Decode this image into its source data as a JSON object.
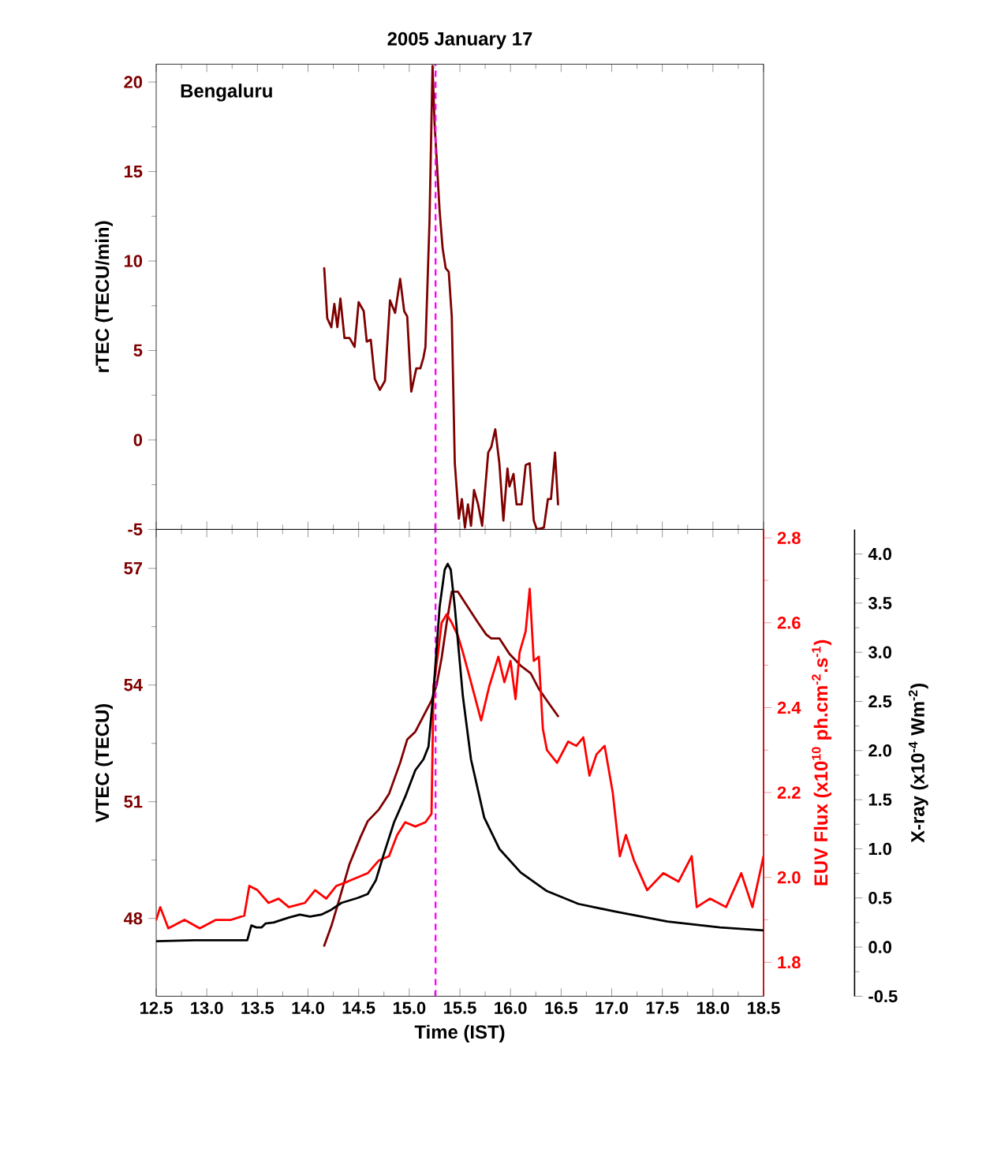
{
  "chart_data": [
    {
      "type": "line",
      "title": "2005 January 17",
      "ylabel": "rTEC (TECU/min)",
      "annotations": [
        "Bengaluru"
      ],
      "series": [
        {
          "color": "#7f0000",
          "x": [
            14.16,
            14.19,
            14.23,
            14.26,
            14.29,
            14.32,
            14.36,
            14.41,
            14.46,
            14.5,
            14.55,
            14.58,
            14.62,
            14.66,
            14.71,
            14.76,
            14.81,
            14.86,
            14.91,
            14.95,
            14.98,
            15.02,
            15.07,
            15.11,
            15.14,
            15.16,
            15.2,
            15.23,
            15.25,
            15.28,
            15.3,
            15.33,
            15.36,
            15.39,
            15.42,
            15.45,
            15.49,
            15.52,
            15.55,
            15.58,
            15.61,
            15.64,
            15.68,
            15.72,
            15.78,
            15.81,
            15.85,
            15.89,
            15.93,
            15.97,
            15.99,
            16.03,
            16.06,
            16.11,
            16.15,
            16.19,
            16.23,
            16.26,
            16.33,
            16.37,
            16.4,
            16.44,
            16.47
          ],
          "values": [
            9.6,
            6.8,
            6.3,
            7.6,
            6.3,
            7.9,
            5.7,
            5.7,
            5.2,
            7.7,
            7.2,
            5.5,
            5.6,
            3.4,
            2.8,
            3.3,
            7.8,
            7.1,
            9.0,
            7.2,
            6.9,
            2.7,
            4.0,
            4.0,
            4.6,
            5.2,
            12.2,
            20.9,
            17.7,
            14.8,
            12.8,
            10.7,
            9.6,
            9.4,
            6.9,
            -1.3,
            -4.4,
            -3.3,
            -4.9,
            -3.6,
            -4.8,
            -2.8,
            -3.6,
            -4.8,
            -0.7,
            -0.4,
            0.6,
            -1.3,
            -4.5,
            -1.6,
            -2.6,
            -1.9,
            -3.6,
            -3.6,
            -1.4,
            -1.3,
            -4.5,
            -5,
            -4.9,
            -3.3,
            -3.3,
            -0.7,
            -3.6
          ]
        }
      ],
      "xlim": [
        12.5,
        18.5
      ],
      "xticks": [
        12.5,
        13,
        13.5,
        14,
        14.5,
        15,
        15.5,
        16,
        16.5,
        17,
        17.5,
        18,
        18.5
      ],
      "ylim": [
        -5,
        21
      ],
      "yticks": [
        -5,
        0,
        5,
        10,
        15,
        20
      ],
      "tick_labels": "y",
      "ref_lines": [
        {
          "axis": "x",
          "value": 15.26,
          "color": "#ff00ff",
          "line_style": "dashed"
        }
      ]
    },
    {
      "type": "line",
      "xlabel": "Time (IST)",
      "ylabel": "VTEC (TECU)",
      "y2label": "EUV Flux (x10$^{10}$ ph.cm$^{-2}$.s$^{-1}$)",
      "y3label": "X-ray (x10$^{-4}$ Wm$^{-2}$)",
      "series": [
        {
          "color": "#7f0000",
          "x": [
            14.16,
            14.23,
            14.31,
            14.41,
            14.52,
            14.59,
            14.7,
            14.8,
            14.91,
            14.98,
            15.06,
            15.14,
            15.22,
            15.27,
            15.32,
            15.37,
            15.42,
            15.48,
            15.58,
            15.68,
            15.76,
            15.81,
            15.89,
            15.99,
            16.1,
            16.2,
            16.28,
            16.36,
            16.47
          ],
          "values": [
            47.3,
            47.8,
            48.5,
            49.4,
            50.1,
            50.5,
            50.8,
            51.2,
            52.0,
            52.6,
            52.8,
            53.2,
            53.6,
            54.0,
            54.7,
            55.6,
            56.4,
            56.4,
            56.0,
            55.6,
            55.3,
            55.2,
            55.2,
            54.8,
            54.5,
            54.3,
            53.9,
            53.6,
            53.2
          ]
        },
        {
          "color": "#ff0000",
          "axis": "y2",
          "x": [
            12.5,
            12.54,
            12.62,
            12.78,
            12.93,
            13.09,
            13.24,
            13.37,
            13.42,
            13.5,
            13.61,
            13.71,
            13.81,
            13.97,
            14.07,
            14.18,
            14.28,
            14.39,
            14.49,
            14.59,
            14.7,
            14.8,
            14.88,
            14.96,
            15.06,
            15.16,
            15.22,
            15.24,
            15.28,
            15.32,
            15.37,
            15.42,
            15.48,
            15.53,
            15.61,
            15.71,
            15.79,
            15.88,
            15.94,
            16.0,
            16.05,
            16.09,
            16.15,
            16.19,
            16.23,
            16.28,
            16.32,
            16.36,
            16.46,
            16.57,
            16.65,
            16.72,
            16.78,
            16.85,
            16.93,
            17.01,
            17.08,
            17.14,
            17.22,
            17.35,
            17.51,
            17.66,
            17.79,
            17.84,
            17.97,
            18.13,
            18.28,
            18.39,
            18.5
          ],
          "values": [
            1.9,
            1.93,
            1.88,
            1.9,
            1.88,
            1.9,
            1.9,
            1.91,
            1.98,
            1.97,
            1.94,
            1.95,
            1.93,
            1.94,
            1.97,
            1.95,
            1.98,
            1.99,
            2.0,
            2.01,
            2.04,
            2.05,
            2.1,
            2.13,
            2.12,
            2.13,
            2.15,
            2.45,
            2.52,
            2.6,
            2.62,
            2.6,
            2.57,
            2.53,
            2.46,
            2.37,
            2.45,
            2.52,
            2.46,
            2.51,
            2.42,
            2.53,
            2.58,
            2.68,
            2.51,
            2.52,
            2.35,
            2.3,
            2.27,
            2.32,
            2.31,
            2.33,
            2.24,
            2.29,
            2.31,
            2.2,
            2.05,
            2.1,
            2.04,
            1.97,
            2.01,
            1.99,
            2.05,
            1.93,
            1.95,
            1.93,
            2.01,
            1.93,
            2.05
          ]
        },
        {
          "color": "#000000",
          "axis": "y3",
          "x": [
            12.5,
            12.88,
            13.4,
            13.44,
            13.49,
            13.54,
            13.58,
            13.66,
            13.81,
            13.92,
            14.02,
            14.13,
            14.23,
            14.33,
            14.49,
            14.59,
            14.67,
            14.75,
            14.85,
            14.96,
            15.06,
            15.14,
            15.19,
            15.24,
            15.3,
            15.35,
            15.38,
            15.41,
            15.45,
            15.53,
            15.61,
            15.74,
            15.89,
            16.1,
            16.36,
            16.67,
            17.04,
            17.55,
            18.07,
            18.5
          ],
          "values": [
            0.06,
            0.07,
            0.07,
            0.22,
            0.2,
            0.2,
            0.24,
            0.25,
            0.3,
            0.33,
            0.31,
            0.33,
            0.38,
            0.45,
            0.5,
            0.54,
            0.68,
            0.95,
            1.27,
            1.53,
            1.8,
            1.91,
            2.04,
            2.61,
            3.46,
            3.84,
            3.9,
            3.84,
            3.46,
            2.55,
            1.91,
            1.32,
            1.0,
            0.76,
            0.57,
            0.44,
            0.36,
            0.26,
            0.2,
            0.17
          ]
        }
      ],
      "xlim": [
        12.5,
        18.5
      ],
      "xticks": [
        12.5,
        {
          "value": 13,
          "label": "13.0"
        },
        13.5,
        {
          "value": 14,
          "label": "14.0"
        },
        14.5,
        {
          "value": 15,
          "label": "15.0"
        },
        15.5,
        {
          "value": 16,
          "label": "16.0"
        },
        16.5,
        {
          "value": 17,
          "label": "17.0"
        },
        17.5,
        {
          "value": 18,
          "label": "18.0"
        },
        18.5
      ],
      "ylim": [
        46,
        58
      ],
      "yticks": [
        48,
        51,
        54,
        57
      ],
      "y2lim": [
        1.72,
        2.82
      ],
      "y2ticks": [
        1.8,
        {
          "value": 2,
          "label": "2.0"
        },
        2.2,
        2.4,
        2.6,
        2.8
      ],
      "y3lim": [
        -0.5,
        4.25
      ],
      "y3ticks": [
        -0.5,
        {
          "value": 0,
          "label": "0.0"
        },
        0.5,
        {
          "value": 1,
          "label": "1.0"
        },
        1.5,
        {
          "value": 2,
          "label": "2.0"
        },
        2.5,
        {
          "value": 3,
          "label": "3.0"
        },
        3.5,
        {
          "value": 4,
          "label": "4.0"
        }
      ],
      "ref_lines": [
        {
          "axis": "x",
          "value": 15.26,
          "color": "#ff00ff",
          "line_style": "dashed"
        }
      ]
    }
  ]
}
